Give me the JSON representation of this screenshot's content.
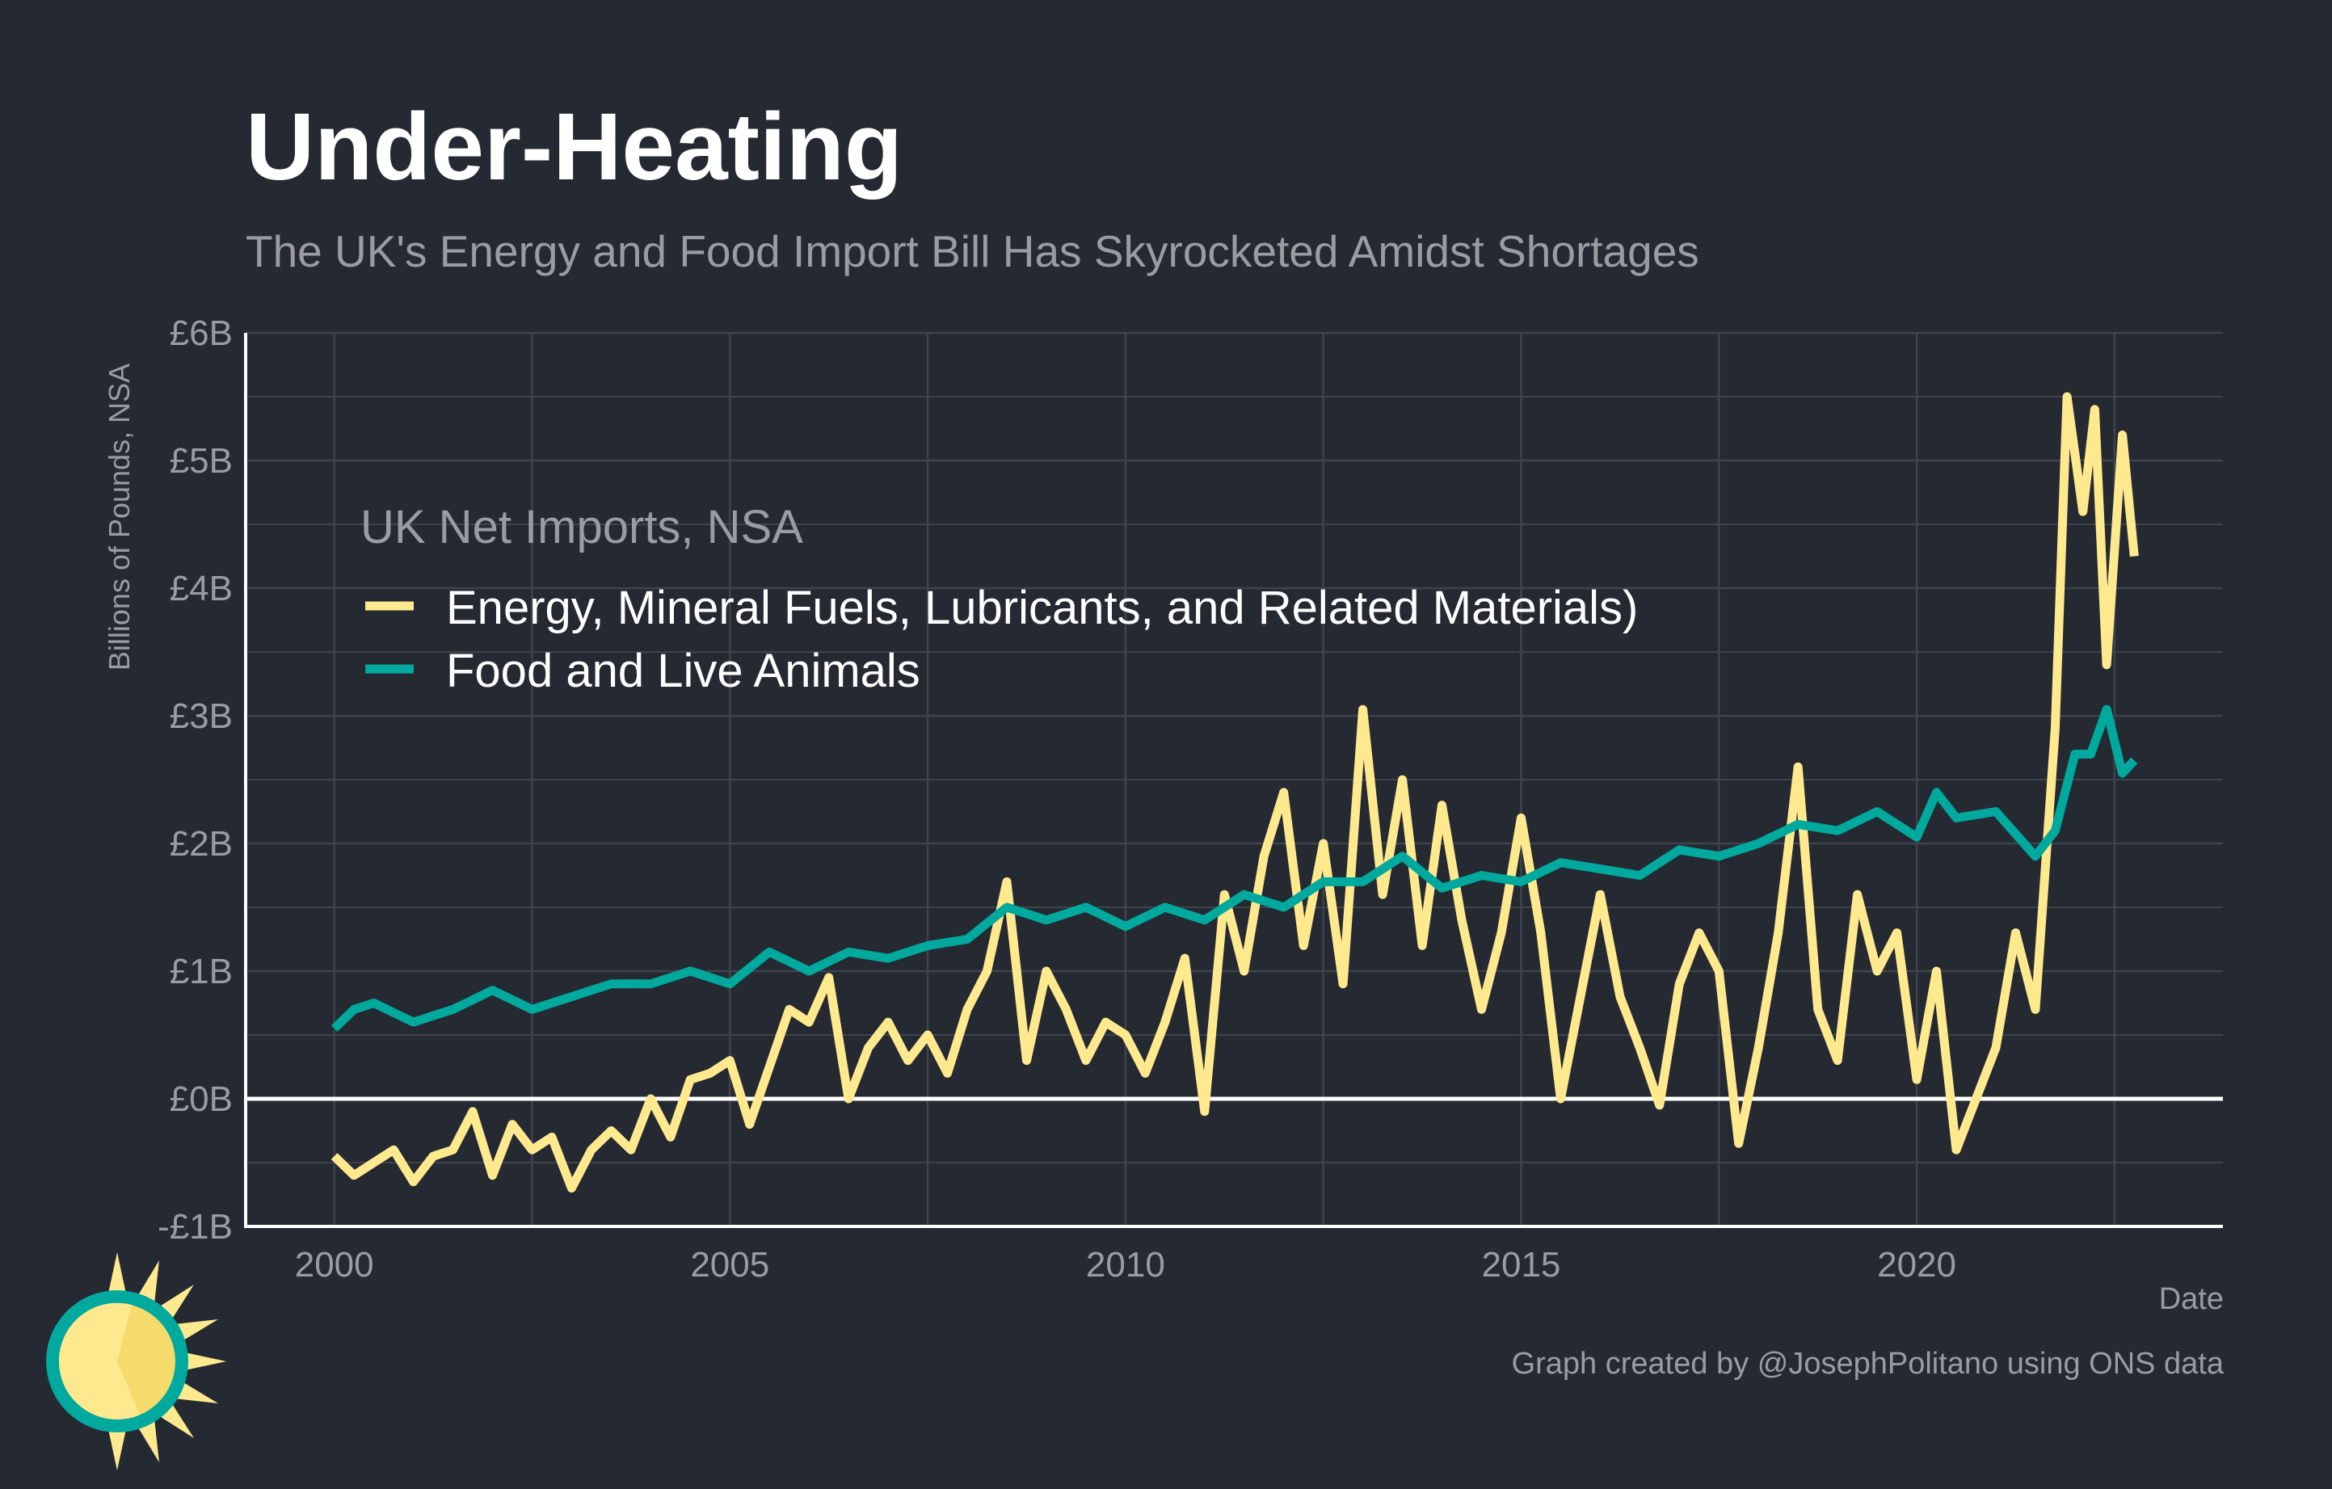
{
  "chart_data": {
    "type": "line",
    "title": "Under-Heating",
    "subtitle": "The UK's Energy and Food Import Bill Has Skyrocketed Amidst Shortages",
    "xlabel": "Date",
    "ylabel": "Billions of Pounds, NSA",
    "xlim": [
      1998.88,
      2023.87
    ],
    "ylim": [
      -1,
      6
    ],
    "grid": true,
    "x_ticks": [
      2000,
      2005,
      2010,
      2015,
      2020
    ],
    "x_tick_labels": [
      "2000",
      "2005",
      "2010",
      "2015",
      "2020"
    ],
    "y_ticks": [
      -1,
      0,
      1,
      2,
      3,
      4,
      5,
      6
    ],
    "y_tick_labels": [
      "-£1B",
      "£0B",
      "£1B",
      "£2B",
      "£3B",
      "£4B",
      "£5B",
      "£6B"
    ],
    "legend": {
      "title": "UK Net Imports, NSA",
      "placement": "top-left"
    },
    "series": [
      {
        "name": "Energy, Mineral Fuels, Lubricants, and Related Materials)",
        "color": "#FFE98F",
        "points": [
          [
            2000.0,
            -0.45
          ],
          [
            2000.25,
            -0.6
          ],
          [
            2000.5,
            -0.5
          ],
          [
            2000.75,
            -0.4
          ],
          [
            2001.0,
            -0.65
          ],
          [
            2001.25,
            -0.45
          ],
          [
            2001.5,
            -0.4
          ],
          [
            2001.75,
            -0.1
          ],
          [
            2002.0,
            -0.6
          ],
          [
            2002.25,
            -0.2
          ],
          [
            2002.5,
            -0.4
          ],
          [
            2002.75,
            -0.3
          ],
          [
            2003.0,
            -0.7
          ],
          [
            2003.25,
            -0.4
          ],
          [
            2003.5,
            -0.25
          ],
          [
            2003.75,
            -0.4
          ],
          [
            2004.0,
            0.0
          ],
          [
            2004.25,
            -0.3
          ],
          [
            2004.5,
            0.15
          ],
          [
            2004.75,
            0.2
          ],
          [
            2005.0,
            0.3
          ],
          [
            2005.25,
            -0.2
          ],
          [
            2005.5,
            0.25
          ],
          [
            2005.75,
            0.7
          ],
          [
            2006.0,
            0.6
          ],
          [
            2006.25,
            0.95
          ],
          [
            2006.5,
            0.0
          ],
          [
            2006.75,
            0.4
          ],
          [
            2007.0,
            0.6
          ],
          [
            2007.25,
            0.3
          ],
          [
            2007.5,
            0.5
          ],
          [
            2007.75,
            0.2
          ],
          [
            2008.0,
            0.7
          ],
          [
            2008.25,
            1.0
          ],
          [
            2008.5,
            1.7
          ],
          [
            2008.75,
            0.3
          ],
          [
            2009.0,
            1.0
          ],
          [
            2009.25,
            0.7
          ],
          [
            2009.5,
            0.3
          ],
          [
            2009.75,
            0.6
          ],
          [
            2010.0,
            0.5
          ],
          [
            2010.25,
            0.2
          ],
          [
            2010.5,
            0.6
          ],
          [
            2010.75,
            1.1
          ],
          [
            2011.0,
            -0.1
          ],
          [
            2011.25,
            1.6
          ],
          [
            2011.5,
            1.0
          ],
          [
            2011.75,
            1.9
          ],
          [
            2012.0,
            2.4
          ],
          [
            2012.25,
            1.2
          ],
          [
            2012.5,
            2.0
          ],
          [
            2012.75,
            0.9
          ],
          [
            2013.0,
            3.05
          ],
          [
            2013.25,
            1.6
          ],
          [
            2013.5,
            2.5
          ],
          [
            2013.75,
            1.2
          ],
          [
            2014.0,
            2.3
          ],
          [
            2014.25,
            1.4
          ],
          [
            2014.5,
            0.7
          ],
          [
            2014.75,
            1.3
          ],
          [
            2015.0,
            2.2
          ],
          [
            2015.25,
            1.3
          ],
          [
            2015.5,
            0.0
          ],
          [
            2015.75,
            0.8
          ],
          [
            2016.0,
            1.6
          ],
          [
            2016.25,
            0.8
          ],
          [
            2016.5,
            0.4
          ],
          [
            2016.75,
            -0.05
          ],
          [
            2017.0,
            0.9
          ],
          [
            2017.25,
            1.3
          ],
          [
            2017.5,
            1.0
          ],
          [
            2017.75,
            -0.35
          ],
          [
            2018.0,
            0.4
          ],
          [
            2018.25,
            1.3
          ],
          [
            2018.5,
            2.6
          ],
          [
            2018.75,
            0.7
          ],
          [
            2019.0,
            0.3
          ],
          [
            2019.25,
            1.6
          ],
          [
            2019.5,
            1.0
          ],
          [
            2019.75,
            1.3
          ],
          [
            2020.0,
            0.15
          ],
          [
            2020.25,
            1.0
          ],
          [
            2020.5,
            -0.4
          ],
          [
            2020.75,
            0.0
          ],
          [
            2021.0,
            0.4
          ],
          [
            2021.25,
            1.3
          ],
          [
            2021.5,
            0.7
          ],
          [
            2021.75,
            2.9
          ],
          [
            2021.9,
            5.5
          ],
          [
            2022.1,
            4.6
          ],
          [
            2022.25,
            5.4
          ],
          [
            2022.4,
            3.4
          ],
          [
            2022.6,
            5.2
          ],
          [
            2022.75,
            4.25
          ]
        ]
      },
      {
        "name": "Food and Live Animals",
        "color": "#00A99D",
        "points": [
          [
            2000.0,
            0.55
          ],
          [
            2000.25,
            0.7
          ],
          [
            2000.5,
            0.75
          ],
          [
            2001.0,
            0.6
          ],
          [
            2001.5,
            0.7
          ],
          [
            2002.0,
            0.85
          ],
          [
            2002.5,
            0.7
          ],
          [
            2003.0,
            0.8
          ],
          [
            2003.5,
            0.9
          ],
          [
            2004.0,
            0.9
          ],
          [
            2004.5,
            1.0
          ],
          [
            2005.0,
            0.9
          ],
          [
            2005.5,
            1.15
          ],
          [
            2006.0,
            1.0
          ],
          [
            2006.5,
            1.15
          ],
          [
            2007.0,
            1.1
          ],
          [
            2007.5,
            1.2
          ],
          [
            2008.0,
            1.25
          ],
          [
            2008.5,
            1.5
          ],
          [
            2009.0,
            1.4
          ],
          [
            2009.5,
            1.5
          ],
          [
            2010.0,
            1.35
          ],
          [
            2010.5,
            1.5
          ],
          [
            2011.0,
            1.4
          ],
          [
            2011.5,
            1.6
          ],
          [
            2012.0,
            1.5
          ],
          [
            2012.5,
            1.7
          ],
          [
            2013.0,
            1.7
          ],
          [
            2013.5,
            1.9
          ],
          [
            2014.0,
            1.65
          ],
          [
            2014.5,
            1.75
          ],
          [
            2015.0,
            1.7
          ],
          [
            2015.5,
            1.85
          ],
          [
            2016.0,
            1.8
          ],
          [
            2016.5,
            1.75
          ],
          [
            2017.0,
            1.95
          ],
          [
            2017.5,
            1.9
          ],
          [
            2018.0,
            2.0
          ],
          [
            2018.5,
            2.15
          ],
          [
            2019.0,
            2.1
          ],
          [
            2019.5,
            2.25
          ],
          [
            2020.0,
            2.05
          ],
          [
            2020.25,
            2.4
          ],
          [
            2020.5,
            2.2
          ],
          [
            2021.0,
            2.25
          ],
          [
            2021.5,
            1.9
          ],
          [
            2021.75,
            2.1
          ],
          [
            2022.0,
            2.7
          ],
          [
            2022.2,
            2.7
          ],
          [
            2022.4,
            3.05
          ],
          [
            2022.6,
            2.55
          ],
          [
            2022.75,
            2.65
          ]
        ]
      }
    ],
    "caption": "Graph created by @JosephPolitano using ONS data"
  },
  "colors": {
    "background": "#252932",
    "grid": "#3F434C",
    "text_muted": "#9A9CA1"
  }
}
